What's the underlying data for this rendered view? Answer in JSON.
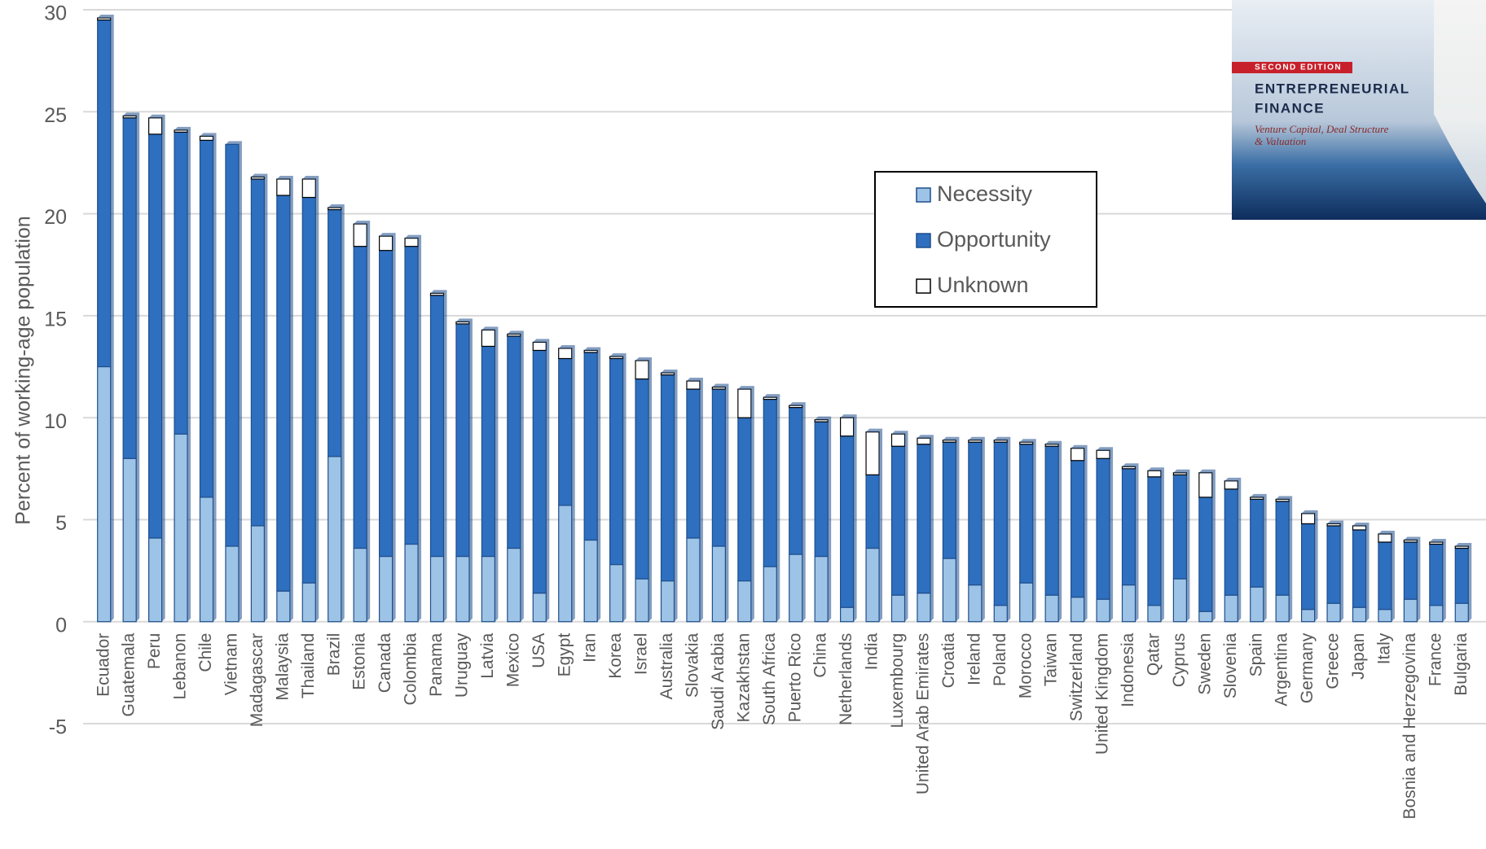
{
  "chart_data": {
    "type": "stacked-bar",
    "y_label": "Percent of working-age population",
    "categories": [
      "Ecuador",
      "Guatemala",
      "Peru",
      "Lebanon",
      "Chile",
      "Vietnam",
      "Madagascar",
      "Malaysia",
      "Thailand",
      "Brazil",
      "Estonia",
      "Canada",
      "Colombia",
      "Panama",
      "Uruguay",
      "Latvia",
      "Mexico",
      "USA",
      "Egypt",
      "Iran",
      "Korea",
      "Israel",
      "Australia",
      "Slovakia",
      "Saudi Arabia",
      "Kazakhstan",
      "South Africa",
      "Puerto Rico",
      "China",
      "Netherlands",
      "India",
      "Luxembourg",
      "United Arab Emirates",
      "Croatia",
      "Ireland",
      "Poland",
      "Morocco",
      "Taiwan",
      "Switzerland",
      "United Kingdom",
      "Indonesia",
      "Qatar",
      "Cyprus",
      "Sweden",
      "Slovenia",
      "Spain",
      "Argentina",
      "Germany",
      "Greece",
      "Japan",
      "Italy",
      "Bosnia and Herzegovina",
      "France",
      "Bulgaria"
    ],
    "series": [
      {
        "name": "Necessity",
        "color": "#9dc3e6",
        "values": [
          12.5,
          8.0,
          4.1,
          9.2,
          6.1,
          3.7,
          4.7,
          1.5,
          1.9,
          8.1,
          3.6,
          3.2,
          3.8,
          3.2,
          3.2,
          3.2,
          3.6,
          1.4,
          5.7,
          4.0,
          2.8,
          2.1,
          2.0,
          4.1,
          3.7,
          2.0,
          2.7,
          3.3,
          3.2,
          0.7,
          3.6,
          1.3,
          1.4,
          3.1,
          1.8,
          0.8,
          1.9,
          1.3,
          1.2,
          1.1,
          1.8,
          0.8,
          2.1,
          0.5,
          1.3,
          1.7,
          1.3,
          0.6,
          0.9,
          0.7,
          0.6,
          1.1,
          0.8,
          0.9
        ]
      },
      {
        "name": "Opportunity",
        "color": "#2e6fbf",
        "values": [
          17.0,
          16.7,
          19.8,
          14.8,
          17.5,
          19.7,
          17.0,
          19.4,
          18.9,
          12.1,
          14.8,
          15.0,
          14.6,
          12.8,
          11.4,
          10.3,
          10.4,
          11.9,
          7.2,
          9.2,
          10.1,
          9.8,
          10.1,
          7.3,
          7.7,
          8.0,
          8.2,
          7.2,
          6.6,
          8.4,
          3.6,
          7.3,
          7.3,
          5.7,
          7.0,
          8.0,
          6.8,
          7.3,
          6.7,
          6.9,
          5.7,
          6.3,
          5.1,
          5.6,
          5.2,
          4.3,
          4.6,
          4.2,
          3.8,
          3.8,
          3.3,
          2.8,
          3.0,
          2.7
        ]
      },
      {
        "name": "Unknown",
        "color": "#ffffff",
        "values": [
          0.1,
          0.1,
          0.8,
          0.1,
          0.2,
          0,
          0.1,
          0.8,
          0.9,
          0.1,
          1.1,
          0.7,
          0.4,
          0.1,
          0.1,
          0.8,
          0.1,
          0.4,
          0.5,
          0.1,
          0.1,
          0.9,
          0.1,
          0.4,
          0.1,
          1.4,
          0.1,
          0.1,
          0.1,
          0.9,
          2.1,
          0.6,
          0.3,
          0.1,
          0.1,
          0.1,
          0.1,
          0.1,
          0.6,
          0.4,
          0.1,
          0.3,
          0.1,
          1.2,
          0.4,
          0.1,
          0.1,
          0.5,
          0.1,
          0.2,
          0.4,
          0.1,
          0.1,
          0.1
        ]
      }
    ],
    "ylim": [
      -5,
      30
    ],
    "yticks": [
      -5,
      0,
      5,
      10,
      15,
      20,
      25,
      30
    ],
    "grid": true,
    "legend": "upper right"
  },
  "cover": {
    "edition": "SECOND EDITION",
    "title": [
      "ENTREPRENEURIAL",
      "FINANCE"
    ],
    "subtitle": [
      "Venture Capital, Deal Structure",
      "& Valuation"
    ]
  }
}
